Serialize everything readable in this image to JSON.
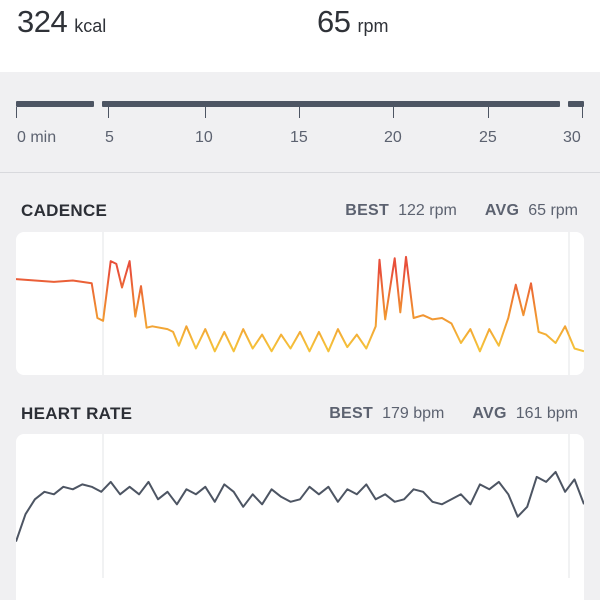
{
  "summary": {
    "calories": {
      "value": "324",
      "unit": "kcal"
    },
    "cadence": {
      "value": "65",
      "unit": "rpm"
    }
  },
  "timeline": {
    "labels": [
      "0 min",
      "5",
      "10",
      "15",
      "20",
      "25",
      "30"
    ]
  },
  "cadence_section": {
    "title": "CADENCE",
    "best_label": "BEST",
    "best_value": "122 rpm",
    "avg_label": "AVG",
    "avg_value": "65 rpm"
  },
  "heart_rate_section": {
    "title": "HEART RATE",
    "best_label": "BEST",
    "best_value": "179 bpm",
    "avg_label": "AVG",
    "avg_value": "161 bpm"
  },
  "colors": {
    "cadence_high": "#e8503a",
    "cadence_mid": "#f08a30",
    "cadence_low": "#f5c13a",
    "heart_rate_line": "#4d5563",
    "timeline": "#4d5563"
  },
  "chart_data": [
    {
      "type": "line",
      "title": "CADENCE",
      "x_unit": "min",
      "x": [
        0,
        1,
        2,
        3,
        4,
        4.3,
        4.6,
        5,
        5.3,
        5.6,
        6,
        6.3,
        6.6,
        6.9,
        7.2,
        8,
        8.3,
        8.6,
        9,
        9.5,
        10,
        10.5,
        11,
        11.5,
        12,
        12.5,
        13,
        13.5,
        14,
        14.5,
        15,
        15.5,
        16,
        16.5,
        17,
        17.5,
        18,
        18.5,
        19,
        19.2,
        19.5,
        20,
        20.3,
        20.6,
        21,
        21.5,
        22,
        22.5,
        23,
        23.5,
        24,
        24.5,
        25,
        25.5,
        26,
        26.4,
        26.8,
        27.2,
        27.6,
        28,
        28.5,
        29,
        29.5,
        30
      ],
      "values": [
        104,
        103,
        102,
        103,
        101,
        76,
        74,
        117,
        115,
        98,
        117,
        77,
        99,
        69,
        70,
        68,
        66,
        56,
        70,
        54,
        68,
        52,
        66,
        52,
        68,
        54,
        64,
        52,
        64,
        54,
        66,
        52,
        66,
        52,
        68,
        55,
        64,
        54,
        70,
        118,
        75,
        119,
        80,
        120,
        76,
        78,
        75,
        76,
        72,
        58,
        68,
        52,
        68,
        56,
        76,
        100,
        78,
        101,
        66,
        64,
        58,
        70,
        54,
        52
      ]
    },
    {
      "type": "line",
      "title": "HEART RATE",
      "x_unit": "min",
      "x": [
        0,
        0.5,
        1,
        1.5,
        2,
        2.5,
        3,
        3.5,
        4,
        4.5,
        5,
        5.5,
        6,
        6.5,
        7,
        7.5,
        8,
        8.5,
        9,
        9.5,
        10,
        10.5,
        11,
        11.5,
        12,
        12.5,
        13,
        13.5,
        14,
        14.5,
        15,
        15.5,
        16,
        16.5,
        17,
        17.5,
        18,
        18.5,
        19,
        19.5,
        20,
        20.5,
        21,
        21.5,
        22,
        22.5,
        23,
        23.5,
        24,
        24.5,
        25,
        25.5,
        26,
        26.5,
        27,
        27.5,
        28,
        28.5,
        29,
        29.5,
        30
      ],
      "values": [
        144,
        155,
        161,
        164,
        163,
        166,
        165,
        167,
        166,
        164,
        168,
        163,
        166,
        163,
        168,
        161,
        164,
        159,
        165,
        163,
        166,
        160,
        167,
        164,
        158,
        163,
        159,
        165,
        162,
        160,
        161,
        166,
        163,
        166,
        160,
        165,
        163,
        167,
        161,
        163,
        160,
        161,
        165,
        164,
        160,
        159,
        161,
        163,
        159,
        167,
        165,
        168,
        163,
        154,
        158,
        170,
        168,
        172,
        164,
        169,
        159
      ]
    }
  ]
}
